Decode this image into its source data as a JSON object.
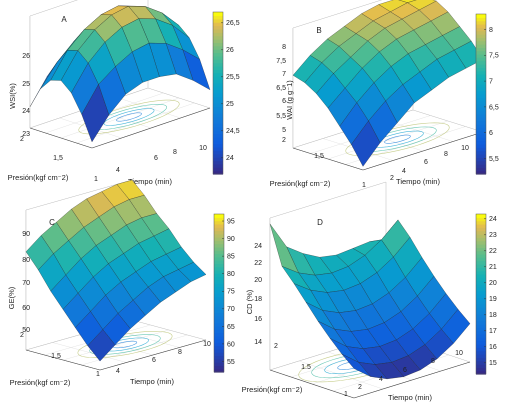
{
  "chart_data": [
    {
      "type": "surface",
      "panel_label": "A",
      "xlabel": "Tiempo (min)",
      "ylabel": "Presión(kgf cm⁻2)",
      "zlabel": "WSI(%)",
      "x_ticks": [
        "4",
        "6",
        "8",
        "10"
      ],
      "y_ticks": [
        "1",
        "1,5",
        "2"
      ],
      "z_ticks": [
        "23",
        "24",
        "25",
        "26"
      ],
      "zlim": [
        23,
        26.7
      ],
      "colorbar_ticks": [
        "24",
        "24,5",
        "25",
        "25,5",
        "26",
        "26,5"
      ],
      "colorbar_range": [
        23.7,
        26.7
      ],
      "surface_grid": [
        [
          23.2,
          23.9,
          24.4,
          24.6,
          24.6,
          24.5,
          24.1,
          23.6
        ],
        [
          24.0,
          24.8,
          25.2,
          25.5,
          25.6,
          25.4,
          25.0,
          24.5
        ],
        [
          24.6,
          25.4,
          25.9,
          26.2,
          26.3,
          26.1,
          25.7,
          25.1
        ],
        [
          24.9,
          25.7,
          26.2,
          26.5,
          26.6,
          26.4,
          26.0,
          25.4
        ],
        [
          24.8,
          25.6,
          26.1,
          26.4,
          26.5,
          26.3,
          25.9,
          25.3
        ],
        [
          24.4,
          25.1,
          25.6,
          25.9,
          26.0,
          25.8,
          25.4,
          24.8
        ],
        [
          23.7,
          24.5,
          24.9,
          25.2,
          25.3,
          25.1,
          24.7,
          24.1
        ]
      ]
    },
    {
      "type": "surface",
      "panel_label": "B",
      "xlabel": "Tiempo (min)",
      "ylabel": "Presión(kgf cm⁻2)",
      "zlabel": "WAI (g g⁻1)",
      "x_ticks": [
        "2",
        "4",
        "6",
        "8",
        "10"
      ],
      "y_ticks": [
        "1",
        "1,5",
        "2"
      ],
      "z_ticks": [
        "5",
        "5,5",
        "6",
        "6,5",
        "7",
        "7,5",
        "8"
      ],
      "zlim": [
        5,
        8.3
      ],
      "colorbar_ticks": [
        "5,5",
        "6",
        "6,5",
        "7",
        "7,5",
        "8"
      ],
      "colorbar_range": [
        5.2,
        8.3
      ],
      "surface_grid": [
        [
          5.1,
          5.6,
          6.0,
          6.4,
          6.6,
          6.8,
          6.9,
          7.0
        ],
        [
          5.6,
          6.1,
          6.5,
          6.8,
          7.0,
          7.2,
          7.3,
          7.4
        ],
        [
          6.0,
          6.5,
          6.9,
          7.2,
          7.4,
          7.5,
          7.6,
          7.7
        ],
        [
          6.4,
          6.8,
          7.2,
          7.5,
          7.7,
          7.8,
          7.9,
          8.0
        ],
        [
          6.7,
          7.1,
          7.4,
          7.7,
          7.9,
          8.0,
          8.1,
          8.2
        ],
        [
          6.9,
          7.3,
          7.6,
          7.8,
          8.0,
          8.1,
          8.2,
          8.2
        ],
        [
          7.0,
          7.4,
          7.7,
          7.9,
          8.1,
          8.2,
          8.2,
          8.3
        ]
      ]
    },
    {
      "type": "surface",
      "panel_label": "C",
      "xlabel": "Tiempo (min)",
      "ylabel": "Presión(kgf cm⁻2)",
      "zlabel": "GE(%)",
      "x_ticks": [
        "4",
        "6",
        "8",
        "10"
      ],
      "y_ticks": [
        "1",
        "1,5",
        "2"
      ],
      "z_ticks": [
        "50",
        "60",
        "70",
        "80",
        "90"
      ],
      "zlim": [
        50,
        97
      ],
      "colorbar_ticks": [
        "55",
        "60",
        "65",
        "70",
        "75",
        "80",
        "85",
        "90",
        "95"
      ],
      "colorbar_range": [
        52,
        97
      ],
      "surface_grid": [
        [
          53,
          57,
          61,
          64,
          67,
          69,
          71,
          72
        ],
        [
          57,
          61,
          65,
          68,
          71,
          73,
          74,
          75
        ],
        [
          62,
          66,
          70,
          73,
          75,
          77,
          78,
          79
        ],
        [
          67,
          71,
          75,
          78,
          80,
          82,
          83,
          84
        ],
        [
          72,
          76,
          80,
          83,
          85,
          87,
          88,
          88
        ],
        [
          78,
          82,
          85,
          88,
          90,
          92,
          93,
          93
        ],
        [
          83,
          87,
          90,
          93,
          95,
          96,
          97,
          97
        ]
      ]
    },
    {
      "type": "surface",
      "panel_label": "D",
      "xlabel": "Tiempo (min)",
      "ylabel": "Presión(kgf cm⁻2)",
      "zlabel": "CD (%)",
      "x_ticks": [
        "2",
        "4",
        "6",
        "8",
        "10"
      ],
      "y_ticks": [
        "1",
        "1.5",
        "2"
      ],
      "z_ticks": [
        "14",
        "16",
        "18",
        "20",
        "22",
        "24"
      ],
      "zlim": [
        14,
        24.3
      ],
      "colorbar_ticks": [
        "15",
        "16",
        "17",
        "18",
        "19",
        "20",
        "21",
        "22",
        "23",
        "24"
      ],
      "colorbar_range": [
        14.3,
        24.3
      ],
      "surface_grid": [
        [
          16.0,
          15.1,
          14.6,
          14.4,
          14.5,
          14.9,
          15.6,
          16.6
        ],
        [
          16.7,
          15.8,
          15.3,
          15.1,
          15.2,
          15.6,
          16.3,
          17.3
        ],
        [
          17.5,
          16.6,
          16.1,
          15.9,
          16.0,
          16.4,
          17.1,
          18.1
        ],
        [
          18.4,
          17.5,
          17.0,
          16.8,
          16.9,
          17.3,
          18.0,
          19.0
        ],
        [
          19.4,
          18.5,
          18.0,
          17.8,
          17.9,
          18.3,
          19.0,
          20.0
        ],
        [
          20.4,
          19.6,
          19.1,
          18.9,
          19.0,
          19.4,
          20.1,
          21.1
        ],
        [
          21.3,
          20.5,
          20.0,
          19.8,
          19.9,
          20.3,
          21.0,
          22.0
        ],
        [
          23.9,
          22.0,
          21.2,
          20.6,
          20.4,
          20.5,
          20.6,
          19.9
        ]
      ]
    }
  ]
}
